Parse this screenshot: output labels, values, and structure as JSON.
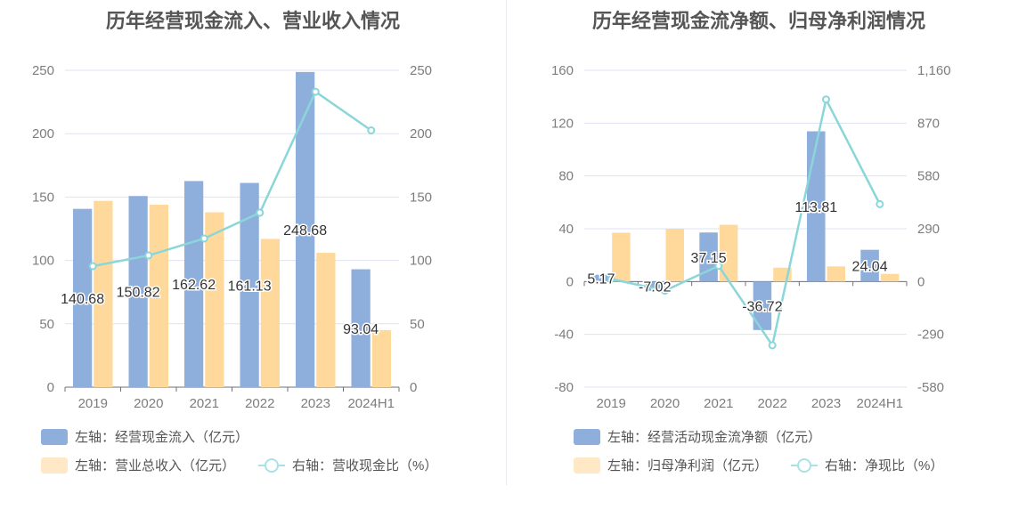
{
  "colors": {
    "bar_primary": "#8eaedc",
    "bar_secondary": "#ffd99b",
    "line": "#8bd6d9",
    "title": "#555555",
    "axis_text": "#7d7d7d",
    "grid": "#dfe3f0"
  },
  "chart_data": [
    {
      "type": "bar",
      "title": "历年经营现金流入、营业收入情况",
      "categories": [
        "2019",
        "2020",
        "2021",
        "2022",
        "2023",
        "2024H1"
      ],
      "y_left": {
        "ylim": [
          0,
          250
        ],
        "ticks": [
          "0",
          "50",
          "100",
          "150",
          "200",
          "250"
        ]
      },
      "y_right": {
        "ylim": [
          0,
          250
        ],
        "ticks": [
          "0",
          "50",
          "100",
          "150",
          "200",
          "250"
        ]
      },
      "series": [
        {
          "name": "左轴：经营现金流入（亿元）",
          "type": "bar",
          "axis": "left",
          "values": [
            140.68,
            150.82,
            162.62,
            161.13,
            248.68,
            93.04
          ],
          "labels": [
            "140.68",
            "150.82",
            "162.62",
            "161.13",
            "248.68",
            "93.04"
          ]
        },
        {
          "name": "左轴：营业总收入（亿元）",
          "type": "bar",
          "axis": "left",
          "values": [
            147,
            144,
            138,
            117,
            106,
            45
          ]
        },
        {
          "name": "右轴：营收现金比（%）",
          "type": "line",
          "axis": "right",
          "values": [
            95.5,
            103.9,
            117.3,
            137.6,
            233.1,
            202.6
          ]
        }
      ],
      "legend": "bottom",
      "grid": true
    },
    {
      "type": "bar",
      "title": "历年经营现金流净额、归母净利润情况",
      "categories": [
        "2019",
        "2020",
        "2021",
        "2022",
        "2023",
        "2024H1"
      ],
      "y_left": {
        "ylim": [
          -80,
          160
        ],
        "ticks": [
          "-80",
          "-40",
          "0",
          "40",
          "80",
          "120",
          "160"
        ]
      },
      "y_right": {
        "ylim": [
          -580,
          1160
        ],
        "ticks": [
          "-580",
          "-290",
          "0",
          "290",
          "580",
          "870",
          "1,160"
        ]
      },
      "series": [
        {
          "name": "左轴：经营活动现金流净额（亿元）",
          "type": "bar",
          "axis": "left",
          "values": [
            5.17,
            -7.02,
            37.15,
            -36.72,
            113.81,
            24.04
          ],
          "labels": [
            "5.17",
            "-7.02",
            "37.15",
            "-36.72",
            "113.81",
            "24.04"
          ]
        },
        {
          "name": "左轴：归母净利润（亿元）",
          "type": "bar",
          "axis": "left",
          "values": [
            37,
            40,
            43,
            10.5,
            11.5,
            5.8
          ]
        },
        {
          "name": "右轴：净现比（%）",
          "type": "line",
          "axis": "right",
          "values": [
            14,
            -50,
            86,
            -350,
            1000,
            425
          ]
        }
      ],
      "legend": "bottom",
      "grid": true
    }
  ]
}
